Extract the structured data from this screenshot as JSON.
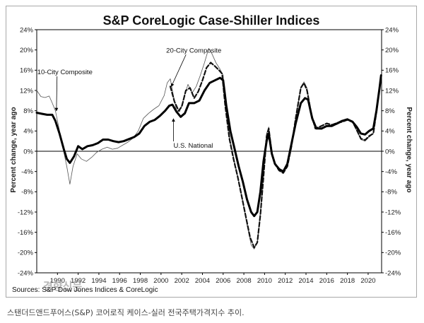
{
  "caption": "스탠더드앤드푸어스(S&P) 코어로직 케이스-실러 전국주택가격지수 추이.",
  "chart_data": {
    "type": "line",
    "title": "S&P CoreLogic Case-Shiller Indices",
    "ylabel_left": "Percent change, year ago",
    "ylabel_right": "Percent change, year ago",
    "source": "Sources: S&P Dow Jones Indices & CoreLogic",
    "ylim": [
      -24,
      24
    ],
    "xlim": [
      1988,
      2021.3
    ],
    "y_ticks": [
      24,
      20,
      16,
      12,
      8,
      4,
      0,
      -4,
      -8,
      -12,
      -16,
      -20,
      -24
    ],
    "y_tick_labels": [
      "24%",
      "20%",
      "16%",
      "12%",
      "8%",
      "4%",
      "0%",
      "-4%",
      "-8%",
      "-12%",
      "-16%",
      "-20%",
      "-24%"
    ],
    "x_ticks": [
      1990,
      1992,
      1994,
      1996,
      1998,
      2000,
      2002,
      2004,
      2006,
      2008,
      2010,
      2012,
      2014,
      2016,
      2018,
      2020
    ],
    "x_tick_labels": [
      "1990",
      "1992",
      "1994",
      "1996",
      "1998",
      "2000",
      "2002",
      "2004",
      "2006",
      "2008",
      "2010",
      "2012",
      "2014",
      "2016",
      "2018",
      "2020"
    ],
    "watermark": "경향신문",
    "annotations": [
      {
        "text": "10-City Composite",
        "x": 1988.05,
        "y": 15.2,
        "target_x": 1989.9,
        "target_y": 8.0
      },
      {
        "text": "20-City Composite",
        "x": 2000.5,
        "y": 19.5,
        "target_x": 2001.0,
        "target_y": 12.8
      },
      {
        "text": "U.S. National",
        "x": 2001.2,
        "y": 0.7,
        "target_x": 2001.2,
        "target_y": 6.4
      }
    ],
    "series": [
      {
        "name": "10-City Composite",
        "style": "thin",
        "color": "#555555",
        "points": [
          [
            1988.0,
            12.0
          ],
          [
            1988.4,
            10.8
          ],
          [
            1988.8,
            10.6
          ],
          [
            1989.2,
            10.9
          ],
          [
            1989.5,
            9.5
          ],
          [
            1989.8,
            8.0
          ],
          [
            1990.1,
            5.0
          ],
          [
            1990.5,
            1.0
          ],
          [
            1990.9,
            -3.0
          ],
          [
            1991.2,
            -6.5
          ],
          [
            1991.5,
            -3.0
          ],
          [
            1991.9,
            -0.5
          ],
          [
            1992.3,
            -1.5
          ],
          [
            1992.8,
            -2.0
          ],
          [
            1993.3,
            -1.2
          ],
          [
            1993.8,
            -0.2
          ],
          [
            1994.3,
            0.4
          ],
          [
            1994.8,
            0.8
          ],
          [
            1995.3,
            0.4
          ],
          [
            1995.8,
            0.6
          ],
          [
            1996.3,
            1.2
          ],
          [
            1996.8,
            1.8
          ],
          [
            1997.3,
            2.6
          ],
          [
            1997.8,
            4.0
          ],
          [
            1998.3,
            6.5
          ],
          [
            1998.8,
            7.5
          ],
          [
            1999.3,
            8.3
          ],
          [
            1999.8,
            9.0
          ],
          [
            2000.3,
            11.0
          ],
          [
            2000.6,
            13.5
          ],
          [
            2000.9,
            14.3
          ],
          [
            2001.2,
            11.0
          ],
          [
            2001.5,
            8.0
          ],
          [
            2001.8,
            7.8
          ],
          [
            2002.2,
            10.5
          ],
          [
            2002.6,
            13.2
          ],
          [
            2003.0,
            11.5
          ],
          [
            2003.4,
            12.8
          ],
          [
            2003.8,
            15.0
          ],
          [
            2004.2,
            17.5
          ],
          [
            2004.6,
            20.3
          ],
          [
            2004.9,
            19.3
          ],
          [
            2005.3,
            17.5
          ],
          [
            2005.7,
            16.2
          ],
          [
            2006.0,
            15.0
          ],
          [
            2006.3,
            8.0
          ],
          [
            2006.7,
            2.0
          ],
          [
            2007.1,
            -2.0
          ],
          [
            2007.5,
            -6.0
          ],
          [
            2007.9,
            -10.0
          ],
          [
            2008.3,
            -14.5
          ],
          [
            2008.7,
            -18.5
          ],
          [
            2009.0,
            -19.3
          ],
          [
            2009.3,
            -18.0
          ],
          [
            2009.6,
            -12.0
          ],
          [
            2009.9,
            -4.0
          ],
          [
            2010.2,
            3.5
          ],
          [
            2010.4,
            4.8
          ],
          [
            2010.7,
            -0.5
          ],
          [
            2011.0,
            -2.5
          ],
          [
            2011.4,
            -3.8
          ],
          [
            2011.8,
            -4.2
          ],
          [
            2012.2,
            -3.0
          ],
          [
            2012.6,
            1.0
          ],
          [
            2013.0,
            6.5
          ],
          [
            2013.5,
            12.5
          ],
          [
            2013.8,
            13.7
          ],
          [
            2014.1,
            12.5
          ],
          [
            2014.5,
            7.5
          ],
          [
            2014.9,
            4.5
          ],
          [
            2015.5,
            4.3
          ],
          [
            2016.0,
            4.8
          ],
          [
            2016.5,
            5.0
          ],
          [
            2017.0,
            5.3
          ],
          [
            2017.5,
            5.8
          ],
          [
            2018.0,
            6.3
          ],
          [
            2018.5,
            6.0
          ],
          [
            2018.9,
            4.0
          ],
          [
            2019.3,
            2.3
          ],
          [
            2019.7,
            2.0
          ],
          [
            2020.1,
            2.8
          ],
          [
            2020.5,
            3.5
          ],
          [
            2020.8,
            7.5
          ],
          [
            2021.1,
            12.5
          ],
          [
            2021.25,
            14.3
          ]
        ]
      },
      {
        "name": "20-City Composite",
        "style": "dashed",
        "color": "#111111",
        "points": [
          [
            2000.9,
            12.8
          ],
          [
            2001.3,
            9.8
          ],
          [
            2001.7,
            8.0
          ],
          [
            2002.0,
            8.8
          ],
          [
            2002.4,
            12.0
          ],
          [
            2002.8,
            12.5
          ],
          [
            2003.2,
            10.5
          ],
          [
            2003.6,
            11.8
          ],
          [
            2004.0,
            14.0
          ],
          [
            2004.4,
            16.5
          ],
          [
            2004.8,
            17.5
          ],
          [
            2005.2,
            16.8
          ],
          [
            2005.6,
            16.0
          ],
          [
            2005.9,
            15.3
          ],
          [
            2006.2,
            9.0
          ],
          [
            2006.6,
            2.5
          ],
          [
            2007.0,
            -1.5
          ],
          [
            2007.4,
            -5.0
          ],
          [
            2007.8,
            -9.0
          ],
          [
            2008.2,
            -13.0
          ],
          [
            2008.6,
            -17.0
          ],
          [
            2009.0,
            -19.0
          ],
          [
            2009.3,
            -18.0
          ],
          [
            2009.6,
            -12.5
          ],
          [
            2009.9,
            -5.0
          ],
          [
            2010.2,
            3.0
          ],
          [
            2010.4,
            4.5
          ],
          [
            2010.7,
            -0.5
          ],
          [
            2011.0,
            -2.5
          ],
          [
            2011.4,
            -3.8
          ],
          [
            2011.8,
            -4.3
          ],
          [
            2012.2,
            -3.0
          ],
          [
            2012.6,
            1.0
          ],
          [
            2013.0,
            6.5
          ],
          [
            2013.5,
            12.5
          ],
          [
            2013.8,
            13.5
          ],
          [
            2014.1,
            12.0
          ],
          [
            2014.5,
            7.5
          ],
          [
            2014.9,
            4.5
          ],
          [
            2015.5,
            5.0
          ],
          [
            2016.0,
            5.5
          ],
          [
            2016.5,
            5.2
          ],
          [
            2017.0,
            5.6
          ],
          [
            2017.5,
            5.8
          ],
          [
            2018.0,
            6.2
          ],
          [
            2018.5,
            5.8
          ],
          [
            2018.9,
            4.2
          ],
          [
            2019.3,
            2.5
          ],
          [
            2019.7,
            2.2
          ],
          [
            2020.1,
            3.0
          ],
          [
            2020.5,
            3.5
          ],
          [
            2020.8,
            7.8
          ],
          [
            2021.1,
            12.5
          ],
          [
            2021.25,
            14.5
          ]
        ]
      },
      {
        "name": "U.S. National",
        "style": "thick",
        "color": "#000000",
        "points": [
          [
            1988.0,
            7.6
          ],
          [
            1988.5,
            7.4
          ],
          [
            1989.0,
            7.2
          ],
          [
            1989.5,
            7.2
          ],
          [
            1989.8,
            6.0
          ],
          [
            1990.2,
            3.5
          ],
          [
            1990.6,
            0.5
          ],
          [
            1990.9,
            -1.5
          ],
          [
            1991.2,
            -2.3
          ],
          [
            1991.6,
            -1.0
          ],
          [
            1992.0,
            1.0
          ],
          [
            1992.4,
            0.4
          ],
          [
            1992.9,
            1.0
          ],
          [
            1993.4,
            1.2
          ],
          [
            1993.9,
            1.6
          ],
          [
            1994.4,
            2.3
          ],
          [
            1994.9,
            2.3
          ],
          [
            1995.4,
            2.0
          ],
          [
            1995.9,
            1.8
          ],
          [
            1996.4,
            2.0
          ],
          [
            1996.9,
            2.4
          ],
          [
            1997.4,
            2.8
          ],
          [
            1997.9,
            3.5
          ],
          [
            1998.4,
            5.0
          ],
          [
            1998.9,
            5.8
          ],
          [
            1999.4,
            6.2
          ],
          [
            1999.9,
            7.0
          ],
          [
            2000.4,
            8.0
          ],
          [
            2000.8,
            9.0
          ],
          [
            2001.1,
            9.2
          ],
          [
            2001.5,
            7.8
          ],
          [
            2001.9,
            6.8
          ],
          [
            2002.3,
            7.5
          ],
          [
            2002.7,
            9.5
          ],
          [
            2003.2,
            9.5
          ],
          [
            2003.7,
            10.0
          ],
          [
            2004.2,
            12.0
          ],
          [
            2004.7,
            13.5
          ],
          [
            2005.2,
            14.0
          ],
          [
            2005.7,
            14.5
          ],
          [
            2006.0,
            14.0
          ],
          [
            2006.3,
            9.0
          ],
          [
            2006.7,
            4.0
          ],
          [
            2007.1,
            0.5
          ],
          [
            2007.5,
            -3.0
          ],
          [
            2007.9,
            -6.0
          ],
          [
            2008.3,
            -9.5
          ],
          [
            2008.7,
            -12.0
          ],
          [
            2009.0,
            -12.8
          ],
          [
            2009.3,
            -12.0
          ],
          [
            2009.6,
            -8.0
          ],
          [
            2009.9,
            -2.0
          ],
          [
            2010.2,
            2.0
          ],
          [
            2010.4,
            3.5
          ],
          [
            2010.7,
            -0.5
          ],
          [
            2011.0,
            -2.5
          ],
          [
            2011.4,
            -3.5
          ],
          [
            2011.8,
            -4.0
          ],
          [
            2012.2,
            -2.5
          ],
          [
            2012.6,
            1.5
          ],
          [
            2013.0,
            5.5
          ],
          [
            2013.5,
            9.5
          ],
          [
            2013.9,
            10.5
          ],
          [
            2014.2,
            10.2
          ],
          [
            2014.6,
            6.5
          ],
          [
            2015.0,
            4.5
          ],
          [
            2015.5,
            4.5
          ],
          [
            2016.0,
            5.0
          ],
          [
            2016.5,
            5.0
          ],
          [
            2017.0,
            5.5
          ],
          [
            2017.5,
            6.0
          ],
          [
            2018.0,
            6.3
          ],
          [
            2018.5,
            5.8
          ],
          [
            2018.9,
            4.8
          ],
          [
            2019.3,
            3.5
          ],
          [
            2019.7,
            3.3
          ],
          [
            2020.1,
            4.0
          ],
          [
            2020.5,
            4.5
          ],
          [
            2020.8,
            8.0
          ],
          [
            2021.1,
            12.5
          ],
          [
            2021.25,
            15.0
          ]
        ]
      }
    ]
  }
}
